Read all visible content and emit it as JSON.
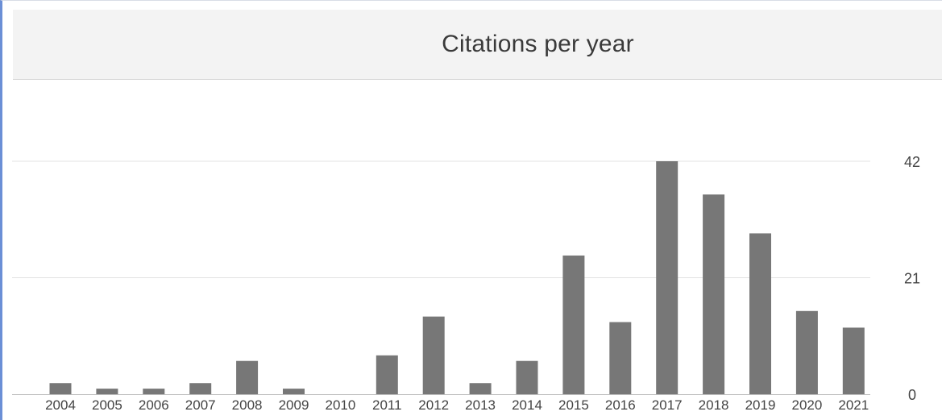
{
  "panel": {
    "title": "Citations per year"
  },
  "colors": {
    "bar": "#777777",
    "gridline": "#e3e3e3",
    "axis": "#bdbdbd",
    "header_bg": "#f3f3f3"
  },
  "chart_data": {
    "type": "bar",
    "title": "Citations per year",
    "xlabel": "",
    "ylabel": "",
    "categories": [
      "2004",
      "2005",
      "2006",
      "2007",
      "2008",
      "2009",
      "2010",
      "2011",
      "2012",
      "2013",
      "2014",
      "2015",
      "2016",
      "2017",
      "2018",
      "2019",
      "2020",
      "2021"
    ],
    "values": [
      2,
      1,
      1,
      2,
      6,
      1,
      0,
      7,
      14,
      2,
      6,
      25,
      13,
      42,
      36,
      29,
      15,
      12
    ],
    "ylim": [
      0,
      42
    ],
    "yticks": [
      0,
      21,
      42
    ],
    "y_axis_side": "right",
    "grid": true,
    "legend": "none"
  }
}
